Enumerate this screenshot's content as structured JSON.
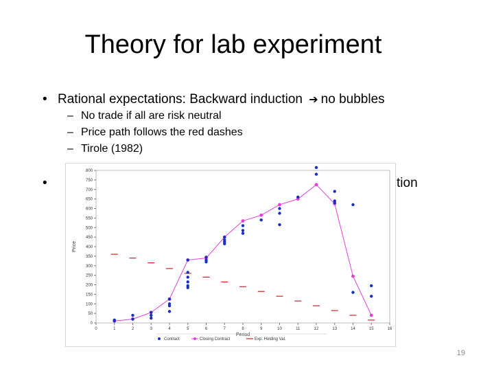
{
  "slide": {
    "title": "Theory for lab experiment",
    "bullet1": "Rational expectations: Backward induction",
    "bullet1_tail": "no bubbles",
    "subbullets": [
      "No trade if all are risk neutral",
      "Price path follows the red dashes",
      "Tirole (1982)"
    ],
    "bullet2_start": "",
    "bullet2_tail": "tion",
    "page_number": "19"
  },
  "colors": {
    "blue": "#1a2fbf",
    "magenta": "#e040d8",
    "red": "#cc2222"
  },
  "chart_data": {
    "type": "scatter",
    "xlabel": "Period",
    "ylabel": "Price",
    "xlim": [
      0,
      16
    ],
    "ylim": [
      0,
      800
    ],
    "x_ticks": [
      "0",
      "1",
      "2",
      "3",
      "4",
      "5",
      "6",
      "7",
      "8",
      "9",
      "10",
      "11",
      "12",
      "13",
      "14",
      "15",
      "16"
    ],
    "y_ticks": [
      "0",
      "50",
      "100",
      "150",
      "200",
      "250",
      "300",
      "350",
      "400",
      "450",
      "500",
      "550",
      "600",
      "650",
      "700",
      "750",
      "800"
    ],
    "legend": [
      "Contract",
      "Closing Contract",
      "Exp. Holding Val."
    ],
    "legend_position": "bottom",
    "series": [
      {
        "name": "Contract",
        "kind": "points",
        "points": [
          [
            1,
            10
          ],
          [
            1,
            15
          ],
          [
            2,
            40
          ],
          [
            2,
            20
          ],
          [
            3,
            55
          ],
          [
            3,
            40
          ],
          [
            3,
            25
          ],
          [
            4,
            125
          ],
          [
            4,
            100
          ],
          [
            4,
            90
          ],
          [
            4,
            60
          ],
          [
            5,
            330
          ],
          [
            5,
            265
          ],
          [
            5,
            240
          ],
          [
            5,
            215
          ],
          [
            5,
            195
          ],
          [
            5,
            185
          ],
          [
            6,
            345
          ],
          [
            6,
            330
          ],
          [
            6,
            320
          ],
          [
            7,
            450
          ],
          [
            7,
            435
          ],
          [
            7,
            425
          ],
          [
            7,
            415
          ],
          [
            8,
            510
          ],
          [
            8,
            485
          ],
          [
            8,
            470
          ],
          [
            9,
            540
          ],
          [
            10,
            600
          ],
          [
            10,
            575
          ],
          [
            10,
            515
          ],
          [
            11,
            660
          ],
          [
            12,
            815
          ],
          [
            12,
            780
          ],
          [
            13,
            690
          ],
          [
            13,
            640
          ],
          [
            13,
            630
          ],
          [
            14,
            620
          ],
          [
            14,
            160
          ],
          [
            15,
            195
          ],
          [
            15,
            140
          ]
        ]
      },
      {
        "name": "Closing Contract",
        "kind": "line",
        "points": [
          [
            1,
            10
          ],
          [
            2,
            20
          ],
          [
            3,
            55
          ],
          [
            4,
            125
          ],
          [
            5,
            330
          ],
          [
            6,
            340
          ],
          [
            7,
            450
          ],
          [
            8,
            535
          ],
          [
            9,
            565
          ],
          [
            10,
            620
          ],
          [
            11,
            650
          ],
          [
            12,
            725
          ],
          [
            13,
            625
          ],
          [
            14,
            245
          ],
          [
            15,
            40
          ]
        ]
      },
      {
        "name": "Exp. Holding Val.",
        "kind": "dashes",
        "points": [
          [
            1,
            360
          ],
          [
            2,
            340
          ],
          [
            3,
            315
          ],
          [
            4,
            285
          ],
          [
            5,
            260
          ],
          [
            6,
            240
          ],
          [
            7,
            215
          ],
          [
            8,
            190
          ],
          [
            9,
            165
          ],
          [
            10,
            140
          ],
          [
            11,
            115
          ],
          [
            12,
            90
          ],
          [
            13,
            65
          ],
          [
            14,
            40
          ],
          [
            15,
            15
          ]
        ]
      }
    ]
  }
}
